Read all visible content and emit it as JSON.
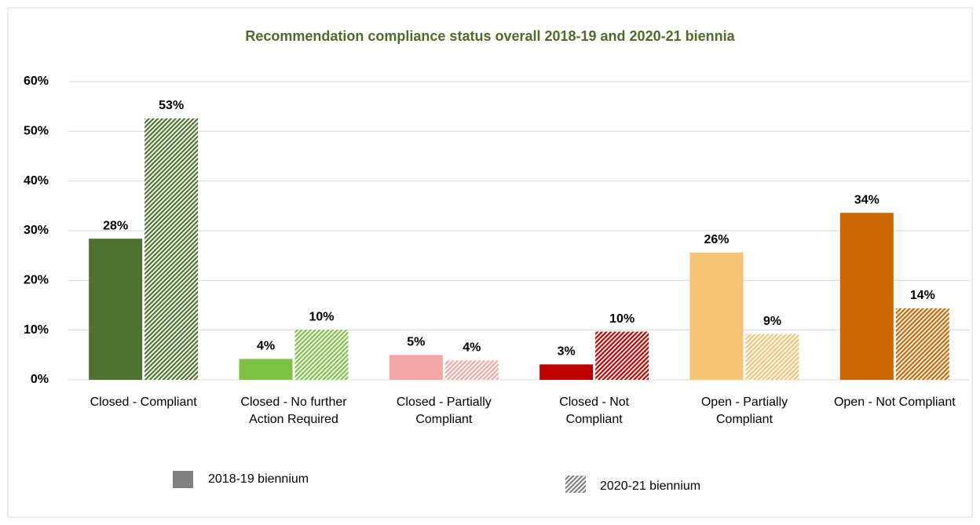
{
  "chart_data": {
    "type": "bar",
    "title": "Recommendation compliance status overall 2018-19 and 2020-21 biennia",
    "categories": [
      "Closed - Compliant",
      "Closed - No further Action Required",
      "Closed - Partially Compliant",
      "Closed - Not Compliant",
      "Open - Partially Compliant",
      "Open - Not Compliant"
    ],
    "category_colors": [
      "#4e7330",
      "#7dc242",
      "#f4a6a6",
      "#c00000",
      "#f4c373",
      "#cc6600"
    ],
    "series": [
      {
        "name": "2018-19 biennium",
        "color": "#808080",
        "pattern": "solid",
        "values": [
          28.4,
          4.2,
          5.0,
          3.1,
          25.6,
          33.6
        ],
        "value_labels": [
          "28%",
          "4%",
          "5%",
          "3%",
          "26%",
          "34%"
        ]
      },
      {
        "name": "2020-21 biennium",
        "color": "#808080",
        "pattern": "hatched",
        "values": [
          52.6,
          10.1,
          3.9,
          9.7,
          9.2,
          14.4
        ],
        "value_labels": [
          "53%",
          "10%",
          "4%",
          "10%",
          "9%",
          "14%"
        ]
      }
    ],
    "ylim": [
      0,
      60
    ],
    "yticks": [
      {
        "value": 0,
        "label": "0%"
      },
      {
        "value": 10,
        "label": "10%"
      },
      {
        "value": 20,
        "label": "20%"
      },
      {
        "value": 30,
        "label": "30%"
      },
      {
        "value": 40,
        "label": "40%"
      },
      {
        "value": 50,
        "label": "50%"
      },
      {
        "value": 60,
        "label": "60%"
      }
    ],
    "grid": true
  }
}
